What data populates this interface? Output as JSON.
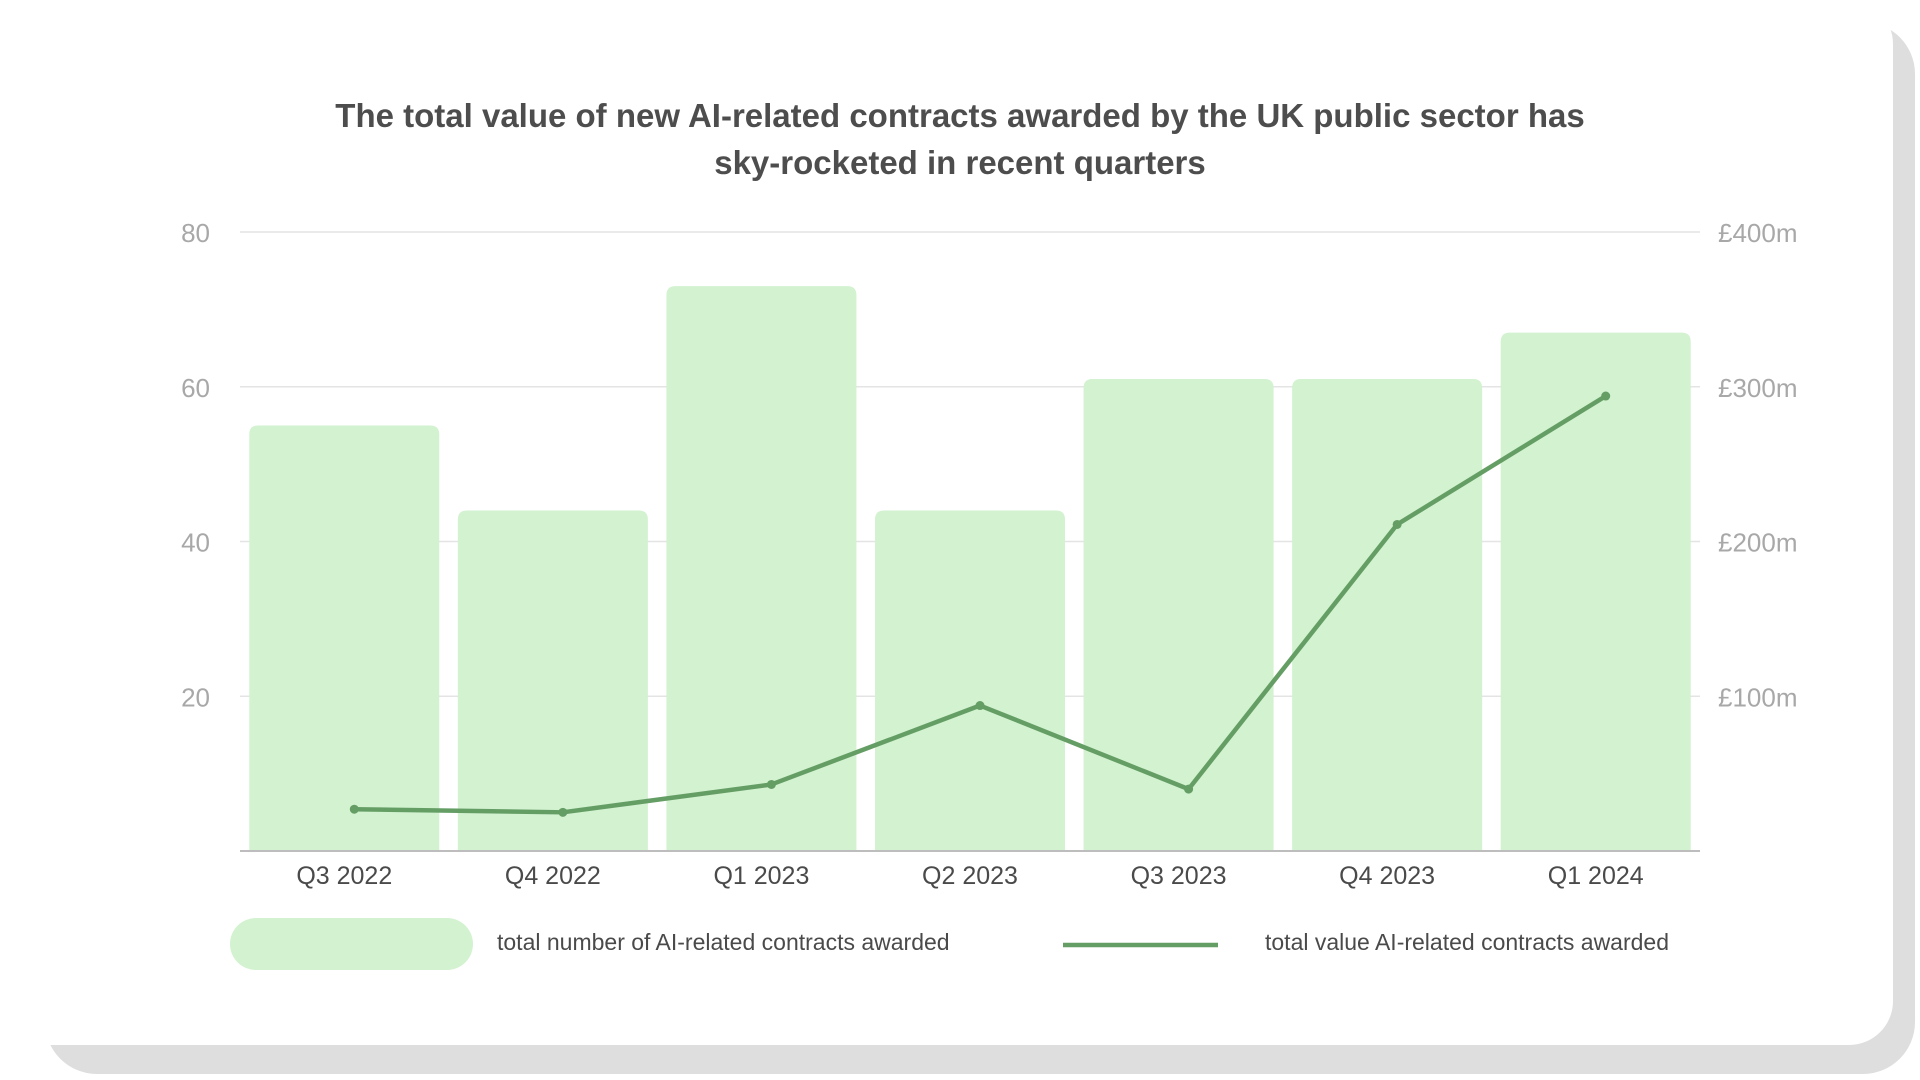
{
  "chart_data": {
    "type": "bar",
    "title_lines": [
      "The total value of new AI-related contracts awarded by the UK public sector has",
      "sky-rocketed in recent quarters"
    ],
    "categories": [
      "Q3 2022",
      "Q4 2022",
      "Q1 2023",
      "Q2 2023",
      "Q3 2023",
      "Q4 2023",
      "Q1 2024"
    ],
    "series": [
      {
        "name": "total number of AI-related contracts awarded",
        "type": "bar",
        "axis": "left",
        "color": "#d2f2d0",
        "values": [
          55,
          44,
          73,
          44,
          61,
          61,
          67
        ]
      },
      {
        "name": "total value AI-related contracts awarded",
        "type": "line",
        "axis": "right",
        "color": "#659e65",
        "values": [
          27,
          25,
          43,
          94,
          40,
          211,
          294
        ]
      }
    ],
    "left_axis": {
      "ticks": [
        20,
        40,
        60,
        80
      ],
      "tick_labels": [
        "20",
        "40",
        "60",
        "80"
      ],
      "ylim": [
        0,
        80
      ]
    },
    "right_axis": {
      "ticks": [
        100,
        200,
        300,
        400
      ],
      "tick_labels": [
        "£100m",
        "£200m",
        "£300m",
        "£400m"
      ],
      "ylim": [
        0,
        400
      ]
    },
    "grid": true,
    "legend_position": "bottom"
  },
  "colors": {
    "bar": "#d2f2d0",
    "line": "#659e65",
    "grid": "#e4e4e4",
    "baseline": "#bdbdbd",
    "tick_label": "#a8a8a8",
    "category_label": "#4a4a4a",
    "title": "#4d4d4d"
  }
}
